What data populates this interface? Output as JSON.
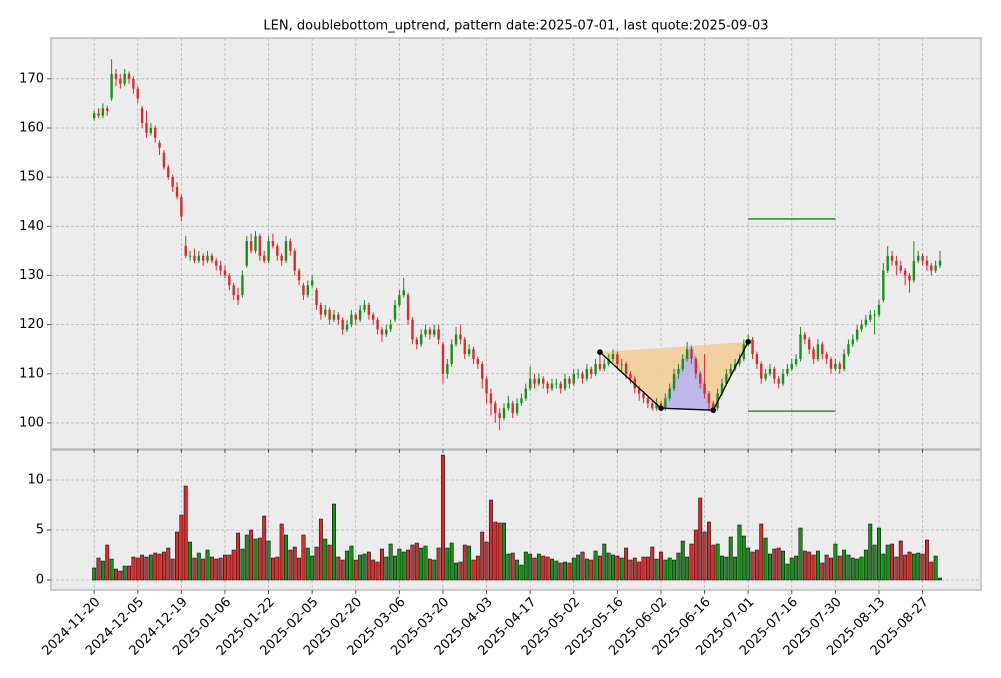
{
  "chart_data": [
    {
      "type": "candlestick",
      "title": "LEN, doublebottom_uptrend, pattern date:2025-07-01, last quote:2025-09-03",
      "up_color": "#1e8c1e",
      "down_color": "#d03030",
      "grid": true,
      "ylim": [
        94.7,
        178.3
      ],
      "yticks": [
        100,
        110,
        120,
        130,
        140,
        150,
        160,
        170
      ],
      "xticks": [
        "2024-11-20",
        "2024-12-05",
        "2024-12-19",
        "2025-01-06",
        "2025-01-22",
        "2025-02-05",
        "2025-02-20",
        "2025-03-06",
        "2025-03-20",
        "2025-04-03",
        "2025-04-17",
        "2025-05-02",
        "2025-05-16",
        "2025-06-02",
        "2025-06-16",
        "2025-07-01",
        "2025-07-16",
        "2025-07-30",
        "2025-08-13",
        "2025-08-27"
      ],
      "x": [
        "2024-11-20",
        "2024-11-21",
        "2024-11-22",
        "2024-11-25",
        "2024-11-26",
        "2024-11-27",
        "2024-11-29",
        "2024-12-02",
        "2024-12-03",
        "2024-12-04",
        "2024-12-05",
        "2024-12-06",
        "2024-12-09",
        "2024-12-10",
        "2024-12-11",
        "2024-12-12",
        "2024-12-13",
        "2024-12-16",
        "2024-12-17",
        "2024-12-18",
        "2024-12-19",
        "2024-12-20",
        "2024-12-23",
        "2024-12-24",
        "2024-12-26",
        "2024-12-27",
        "2024-12-30",
        "2024-12-31",
        "2025-01-02",
        "2025-01-03",
        "2025-01-06",
        "2025-01-07",
        "2025-01-08",
        "2025-01-10",
        "2025-01-13",
        "2025-01-14",
        "2025-01-15",
        "2025-01-16",
        "2025-01-17",
        "2025-01-21",
        "2025-01-22",
        "2025-01-23",
        "2025-01-24",
        "2025-01-27",
        "2025-01-28",
        "2025-01-29",
        "2025-01-30",
        "2025-01-31",
        "2025-02-03",
        "2025-02-04",
        "2025-02-05",
        "2025-02-06",
        "2025-02-07",
        "2025-02-10",
        "2025-02-11",
        "2025-02-12",
        "2025-02-13",
        "2025-02-14",
        "2025-02-18",
        "2025-02-19",
        "2025-02-20",
        "2025-02-21",
        "2025-02-24",
        "2025-02-25",
        "2025-02-26",
        "2025-02-27",
        "2025-02-28",
        "2025-03-03",
        "2025-03-04",
        "2025-03-05",
        "2025-03-06",
        "2025-03-07",
        "2025-03-10",
        "2025-03-11",
        "2025-03-12",
        "2025-03-13",
        "2025-03-14",
        "2025-03-17",
        "2025-03-18",
        "2025-03-19",
        "2025-03-20",
        "2025-03-21",
        "2025-03-24",
        "2025-03-25",
        "2025-03-26",
        "2025-03-27",
        "2025-03-28",
        "2025-03-31",
        "2025-04-01",
        "2025-04-02",
        "2025-04-03",
        "2025-04-04",
        "2025-04-07",
        "2025-04-08",
        "2025-04-09",
        "2025-04-10",
        "2025-04-11",
        "2025-04-14",
        "2025-04-15",
        "2025-04-16",
        "2025-04-17",
        "2025-04-21",
        "2025-04-22",
        "2025-04-23",
        "2025-04-24",
        "2025-04-25",
        "2025-04-28",
        "2025-04-29",
        "2025-04-30",
        "2025-05-01",
        "2025-05-02",
        "2025-05-05",
        "2025-05-06",
        "2025-05-07",
        "2025-05-08",
        "2025-05-09",
        "2025-05-12",
        "2025-05-13",
        "2025-05-14",
        "2025-05-15",
        "2025-05-16",
        "2025-05-19",
        "2025-05-20",
        "2025-05-21",
        "2025-05-22",
        "2025-05-23",
        "2025-05-27",
        "2025-05-28",
        "2025-05-29",
        "2025-05-30",
        "2025-06-02",
        "2025-06-03",
        "2025-06-04",
        "2025-06-05",
        "2025-06-06",
        "2025-06-09",
        "2025-06-10",
        "2025-06-11",
        "2025-06-12",
        "2025-06-13",
        "2025-06-16",
        "2025-06-17",
        "2025-06-18",
        "2025-06-20",
        "2025-06-23",
        "2025-06-24",
        "2025-06-25",
        "2025-06-26",
        "2025-06-27",
        "2025-06-30",
        "2025-07-01",
        "2025-07-02",
        "2025-07-03",
        "2025-07-07",
        "2025-07-08",
        "2025-07-09",
        "2025-07-10",
        "2025-07-11",
        "2025-07-14",
        "2025-07-15",
        "2025-07-16",
        "2025-07-17",
        "2025-07-18",
        "2025-07-21",
        "2025-07-22",
        "2025-07-23",
        "2025-07-24",
        "2025-07-25",
        "2025-07-28",
        "2025-07-29",
        "2025-07-30",
        "2025-07-31",
        "2025-08-01",
        "2025-08-04",
        "2025-08-05",
        "2025-08-06",
        "2025-08-07",
        "2025-08-08",
        "2025-08-11",
        "2025-08-12",
        "2025-08-13",
        "2025-08-14",
        "2025-08-15",
        "2025-08-18",
        "2025-08-19",
        "2025-08-20",
        "2025-08-21",
        "2025-08-22",
        "2025-08-25",
        "2025-08-26",
        "2025-08-27",
        "2025-08-28",
        "2025-08-29",
        "2025-09-02",
        "2025-09-03"
      ],
      "open": [
        162,
        163,
        162.5,
        164,
        166,
        171,
        170,
        169,
        171,
        170,
        168,
        164,
        161,
        159,
        160,
        157,
        155,
        152,
        150,
        148,
        146,
        136,
        134,
        134,
        133,
        134,
        133,
        134,
        133,
        132,
        131,
        130,
        128,
        126,
        126,
        132,
        137,
        135,
        138,
        134,
        133,
        137,
        136,
        134,
        133,
        137,
        135,
        131,
        128,
        126,
        128,
        127,
        124,
        122,
        123,
        121,
        122,
        121,
        119,
        120,
        122,
        121,
        123,
        124,
        122,
        121,
        119,
        118,
        119,
        121,
        124,
        126,
        126,
        121,
        117,
        116,
        118,
        119,
        118,
        119,
        116,
        110,
        112,
        116,
        118,
        117,
        114,
        115,
        113,
        112,
        109,
        106,
        104,
        102,
        101,
        103,
        104,
        102,
        104,
        105,
        107,
        109,
        108,
        109,
        108,
        107,
        108,
        108,
        107,
        109,
        108,
        110,
        110,
        109,
        111,
        110,
        112,
        111,
        112,
        113,
        114,
        112,
        112,
        110,
        109,
        107,
        106,
        105,
        104,
        103,
        104,
        103,
        105,
        107,
        110,
        111,
        113,
        115,
        113,
        110,
        108,
        106,
        104,
        103,
        106,
        108,
        110,
        111,
        112,
        113,
        116,
        117,
        114,
        112,
        109,
        110,
        111,
        109,
        108,
        110,
        111,
        112,
        113,
        118,
        117,
        115,
        113,
        116,
        114,
        113,
        111,
        112,
        111,
        114,
        116,
        117,
        119,
        120,
        121,
        122,
        122,
        125,
        131,
        134,
        133,
        132,
        131,
        130,
        129,
        133,
        134,
        133,
        132,
        131,
        132
      ],
      "high": [
        163.5,
        164,
        165,
        164.5,
        174,
        172,
        171,
        172,
        171.5,
        170.5,
        168.5,
        164.5,
        163.5,
        161,
        160.5,
        157.5,
        155.5,
        152.5,
        150.5,
        149,
        146.5,
        138,
        135,
        135.5,
        135,
        134.5,
        135,
        134.5,
        133.5,
        133,
        132,
        130.5,
        128.5,
        127.5,
        131,
        138,
        138.5,
        139,
        138.5,
        135,
        138,
        138.5,
        136.5,
        134.5,
        138,
        137.5,
        135.5,
        131.5,
        128.5,
        129,
        130,
        127.5,
        124.5,
        124,
        123.5,
        123,
        122.5,
        121.5,
        121,
        123,
        122.5,
        124,
        125,
        124.5,
        122.5,
        121.5,
        119.5,
        120,
        121,
        125,
        127,
        129.5,
        126.5,
        121.5,
        117.5,
        119,
        120,
        119.5,
        120,
        120,
        116.5,
        113,
        117,
        119.5,
        120,
        117.5,
        116,
        115.5,
        113.5,
        112.5,
        109.5,
        107,
        104.5,
        103,
        104,
        105.5,
        104.5,
        105,
        106,
        108,
        111.5,
        110,
        110,
        109.5,
        108.5,
        109,
        109,
        108.5,
        110,
        109.5,
        111,
        111,
        110.5,
        112,
        111.5,
        113,
        114.5,
        113,
        114,
        115,
        114.5,
        113,
        112.5,
        110.5,
        109.5,
        107.5,
        106.5,
        105.5,
        104.5,
        105,
        104.5,
        106,
        108,
        111,
        112,
        114,
        116.5,
        115.5,
        113.5,
        110.5,
        114,
        106.5,
        104.5,
        107,
        109,
        111,
        112,
        113,
        114,
        117,
        118,
        117.5,
        114.5,
        112.5,
        111,
        112,
        111.5,
        109.5,
        111,
        112,
        113,
        114,
        119.5,
        118.5,
        117.5,
        115.5,
        117,
        116.5,
        114.5,
        113.5,
        113,
        112.5,
        115,
        117,
        118,
        120,
        121,
        122,
        123,
        123,
        125,
        132.5,
        136,
        135,
        134,
        133,
        131.5,
        130.5,
        137,
        135,
        134.5,
        134,
        132.5,
        133,
        135
      ],
      "low": [
        161.5,
        162,
        162,
        162.5,
        165.5,
        168.5,
        168,
        168.5,
        169,
        167,
        165,
        160,
        158,
        158.5,
        157,
        154.5,
        151.5,
        149.5,
        147,
        145.5,
        141,
        133.5,
        133,
        132.5,
        132.5,
        132,
        132.5,
        132.5,
        131,
        130,
        129.5,
        127,
        125,
        124,
        125.5,
        131.5,
        134.5,
        134.5,
        133,
        132.5,
        132.5,
        135.5,
        133,
        132,
        132.5,
        134,
        130,
        128,
        125,
        125.5,
        127.5,
        123,
        121,
        121.5,
        120,
        120.5,
        120,
        118,
        118.5,
        119.5,
        120,
        120.5,
        122.5,
        121,
        120,
        118,
        116.5,
        117.5,
        118.5,
        120.5,
        123.5,
        125.5,
        120,
        116,
        115,
        115.5,
        117.5,
        117,
        117.5,
        116,
        108,
        109,
        111.5,
        115.5,
        116,
        113,
        113.5,
        112,
        111,
        107,
        104,
        101.5,
        100,
        98.5,
        100.5,
        102.5,
        101,
        101.5,
        103.5,
        104.5,
        106.5,
        107,
        107.5,
        107,
        106,
        106.5,
        107,
        106,
        106.5,
        107,
        107.5,
        109,
        108,
        108.5,
        109,
        109.5,
        110.5,
        110.5,
        111.5,
        112.5,
        111,
        110.5,
        109,
        108,
        106,
        104.5,
        104,
        103,
        102.5,
        102.5,
        102.8,
        102.5,
        104.5,
        106.5,
        109,
        110.5,
        112.5,
        112,
        109,
        107,
        105,
        102.4,
        102.5,
        102.5,
        105.5,
        107.5,
        109.5,
        110.5,
        111.5,
        112.5,
        115.5,
        113,
        111,
        108,
        108.5,
        109.5,
        108,
        107,
        107.5,
        109.5,
        110.5,
        111.5,
        112.5,
        116,
        114,
        112,
        112.5,
        113,
        112,
        110,
        110.5,
        110,
        110.5,
        113.5,
        115.5,
        116.5,
        118.5,
        119.5,
        120.5,
        118,
        121.5,
        124.5,
        130.5,
        132,
        130,
        130.5,
        128,
        126.5,
        128.5,
        132.5,
        132,
        131,
        130,
        130.5,
        131.5
      ],
      "close": [
        163,
        162.5,
        164,
        163.5,
        171,
        170,
        169,
        171,
        170,
        168,
        166,
        161,
        159,
        160,
        158,
        156,
        152,
        150,
        148,
        146,
        142,
        134,
        134,
        133,
        134,
        133,
        134,
        133,
        132,
        131,
        130,
        128,
        126,
        125,
        130,
        137,
        135,
        138,
        134,
        133,
        137,
        136,
        134,
        133,
        137,
        135,
        131,
        129,
        126,
        128,
        129,
        124,
        122,
        123,
        121,
        122,
        121,
        119,
        120,
        122,
        121,
        123,
        124,
        122,
        121,
        119,
        118,
        119,
        120,
        124,
        126,
        127,
        121,
        117,
        116,
        118,
        119,
        118,
        119,
        117,
        110,
        112,
        116,
        118,
        117,
        114,
        115,
        113,
        112,
        109,
        106,
        104,
        102,
        101,
        103,
        104,
        102,
        104,
        105,
        107,
        109,
        108,
        109,
        108,
        107,
        108,
        108,
        107,
        109,
        108,
        110,
        110,
        109,
        111,
        110,
        112,
        111,
        112,
        113,
        114,
        112,
        112,
        110,
        109,
        107,
        106,
        105,
        104,
        103,
        104,
        103,
        105,
        107,
        110,
        111,
        113,
        115,
        113,
        110,
        108,
        106,
        104,
        103,
        106,
        108,
        110,
        111,
        112,
        113,
        116,
        117,
        114,
        112,
        109,
        110,
        111,
        109,
        108,
        110,
        111,
        112,
        113,
        118,
        117,
        115,
        113,
        116,
        114,
        113,
        111,
        112,
        111,
        114,
        116,
        117,
        119,
        120,
        121,
        122,
        122,
        124,
        131,
        134,
        133,
        132,
        131,
        130,
        129,
        133,
        134,
        133,
        132,
        131,
        132,
        133
      ],
      "pattern": {
        "points": [
          {
            "x": "2025-05-12",
            "y": 114.4
          },
          {
            "x": "2025-06-02",
            "y": 103.0
          },
          {
            "x": "2025-06-18",
            "y": 102.6
          },
          {
            "x": "2025-07-01",
            "y": 116.5
          }
        ],
        "peak": {
          "x": "2025-06-11",
          "y": 116.3
        },
        "line_color": "#000000",
        "outer_fill": "#f3cd94",
        "inner_fill": "#b4b4f4"
      },
      "levels": [
        {
          "value": 141.5,
          "from": "2025-07-01",
          "to": "2025-07-30",
          "color": "#108010"
        },
        {
          "value": 102.4,
          "from": "2025-07-01",
          "to": "2025-07-30",
          "color": "#108010"
        }
      ]
    },
    {
      "type": "bar",
      "ylim": [
        -1.0,
        13.0
      ],
      "yticks": [
        0,
        5,
        10
      ],
      "grid": true,
      "values": [
        1.2,
        2.2,
        1.9,
        3.5,
        2.1,
        1.1,
        0.9,
        1.4,
        1.4,
        2.3,
        2.2,
        2.5,
        2.3,
        2.5,
        2.7,
        2.6,
        2.8,
        3.2,
        2.1,
        4.8,
        6.5,
        9.4,
        3.8,
        2.2,
        2.7,
        2.1,
        3.0,
        2.3,
        2.1,
        2.2,
        2.5,
        2.5,
        3.0,
        4.7,
        3.1,
        4.5,
        5.0,
        4.1,
        4.2,
        6.4,
        3.9,
        2.2,
        2.3,
        5.6,
        4.5,
        3.0,
        3.3,
        2.2,
        4.5,
        3.2,
        2.4,
        3.3,
        6.1,
        4.1,
        3.5,
        7.6,
        2.3,
        2.0,
        2.9,
        3.4,
        2.0,
        2.5,
        2.6,
        2.8,
        2.0,
        1.8,
        3.1,
        2.3,
        3.6,
        2.4,
        3.1,
        2.8,
        3.0,
        3.5,
        3.7,
        3.2,
        3.4,
        2.1,
        2.0,
        3.2,
        12.5,
        3.2,
        3.7,
        1.7,
        1.8,
        3.5,
        3.4,
        2.0,
        2.4,
        4.8,
        3.8,
        8.0,
        5.8,
        5.7,
        5.7,
        2.6,
        2.7,
        2.0,
        1.5,
        2.8,
        2.6,
        2.2,
        2.6,
        2.4,
        2.3,
        2.1,
        1.9,
        1.7,
        1.8,
        1.7,
        2.2,
        2.5,
        2.8,
        2.1,
        2.0,
        2.9,
        2.4,
        3.6,
        2.7,
        2.5,
        2.4,
        2.2,
        3.2,
        2.0,
        2.2,
        1.8,
        2.3,
        2.3,
        3.3,
        2.1,
        2.8,
        2.0,
        2.2,
        2.0,
        2.7,
        3.9,
        2.3,
        3.6,
        5.0,
        8.2,
        4.8,
        5.8,
        3.5,
        3.6,
        2.4,
        2.3,
        4.3,
        2.3,
        5.5,
        4.4,
        3.2,
        2.8,
        3.0,
        5.6,
        4.2,
        2.6,
        3.1,
        3.2,
        2.9,
        1.6,
        2.2,
        2.4,
        5.2,
        2.9,
        2.8,
        2.5,
        2.9,
        1.7,
        2.5,
        2.2,
        3.6,
        2.4,
        3.0,
        2.5,
        2.2,
        2.1,
        2.3,
        3.0,
        5.6,
        3.5,
        5.2,
        2.6,
        3.5,
        3.6,
        2.3,
        3.9,
        2.5,
        2.8,
        2.6,
        2.7,
        2.6,
        4.0,
        1.8,
        2.4,
        0.2
      ]
    }
  ]
}
